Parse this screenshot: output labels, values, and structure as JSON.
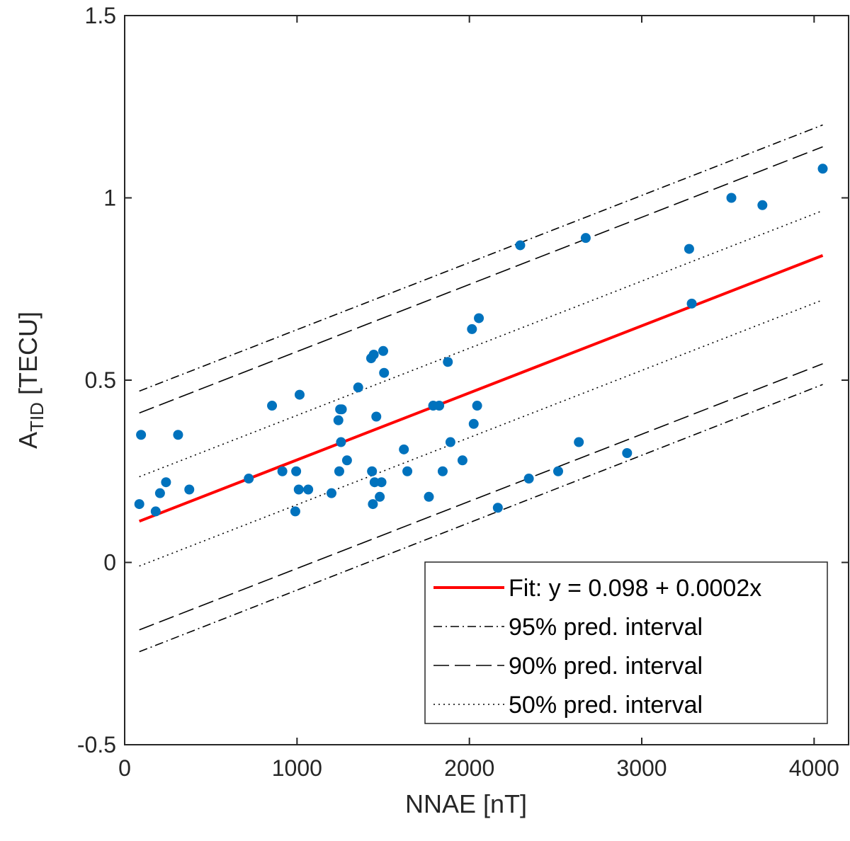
{
  "chart_data": {
    "type": "scatter",
    "xlabel": "NNAE [nT]",
    "ylabel_main": "A",
    "ylabel_sub": "TID",
    "ylabel_unit": " [TECU]",
    "xlim": [
      0,
      4200
    ],
    "ylim": [
      -0.5,
      1.5
    ],
    "xticks": [
      0,
      1000,
      2000,
      3000,
      4000
    ],
    "xtick_labels": [
      "0",
      "1000",
      "2000",
      "3000",
      "4000"
    ],
    "yticks": [
      -0.5,
      0,
      0.5,
      1,
      1.5
    ],
    "ytick_labels": [
      "-0.5",
      "0",
      "0.5",
      "1",
      "1.5"
    ],
    "grid": false,
    "legend_position": "bottom-right",
    "series": [
      {
        "name": "data",
        "kind": "points",
        "color": "#0072BD",
        "x": [
          85,
          95,
          180,
          205,
          240,
          310,
          375,
          720,
          855,
          915,
          990,
          995,
          1010,
          1015,
          1065,
          1200,
          1240,
          1245,
          1250,
          1255,
          1260,
          1290,
          1355,
          1430,
          1435,
          1440,
          1445,
          1450,
          1460,
          1480,
          1490,
          1500,
          1505,
          1620,
          1640,
          1765,
          1790,
          1825,
          1845,
          1875,
          1890,
          1960,
          2015,
          2025,
          2045,
          2055,
          2165,
          2295,
          2345,
          2515,
          2635,
          2675,
          2915,
          3275,
          3290,
          3520,
          3700,
          4050
        ],
        "y": [
          0.16,
          0.35,
          0.14,
          0.19,
          0.22,
          0.35,
          0.2,
          0.23,
          0.43,
          0.25,
          0.14,
          0.25,
          0.2,
          0.46,
          0.2,
          0.19,
          0.39,
          0.25,
          0.42,
          0.33,
          0.42,
          0.28,
          0.48,
          0.56,
          0.25,
          0.16,
          0.57,
          0.22,
          0.4,
          0.18,
          0.22,
          0.58,
          0.52,
          0.31,
          0.25,
          0.18,
          0.43,
          0.43,
          0.25,
          0.55,
          0.33,
          0.28,
          0.64,
          0.38,
          0.43,
          0.67,
          0.15,
          0.87,
          0.23,
          0.25,
          0.33,
          0.89,
          0.3,
          0.86,
          0.71,
          1.0,
          0.98,
          1.08
        ]
      },
      {
        "name": "Fit: y = 0.098 + 0.0002x",
        "kind": "line",
        "style": "solid",
        "color": "#FF0000",
        "x": [
          85,
          4050
        ],
        "y": [
          0.113,
          0.842
        ]
      },
      {
        "name": "95% pred. interval",
        "kind": "line",
        "style": "dashdot",
        "color": "#000000",
        "x": [
          85,
          4050
        ],
        "y": [
          0.47,
          1.2
        ]
      },
      {
        "name": "95% pred. interval (lower)",
        "kind": "line",
        "style": "dashdot",
        "color": "#000000",
        "x": [
          85,
          4050
        ],
        "y": [
          -0.245,
          0.488
        ]
      },
      {
        "name": "90% pred. interval",
        "kind": "line",
        "style": "dashed",
        "color": "#000000",
        "x": [
          85,
          4050
        ],
        "y": [
          0.41,
          1.14
        ]
      },
      {
        "name": "90% pred. interval (lower)",
        "kind": "line",
        "style": "dashed",
        "color": "#000000",
        "x": [
          85,
          4050
        ],
        "y": [
          -0.185,
          0.545
        ]
      },
      {
        "name": "50% pred. interval",
        "kind": "line",
        "style": "dotted",
        "color": "#000000",
        "x": [
          85,
          4050
        ],
        "y": [
          0.235,
          0.965
        ]
      },
      {
        "name": "50% pred. interval (lower)",
        "kind": "line",
        "style": "dotted",
        "color": "#000000",
        "x": [
          85,
          4050
        ],
        "y": [
          -0.01,
          0.72
        ]
      }
    ],
    "legend": [
      {
        "label": "Fit: y = 0.098 + 0.0002x",
        "style": "solid",
        "color": "#FF0000"
      },
      {
        "label": "95% pred. interval",
        "style": "dashdot",
        "color": "#000000"
      },
      {
        "label": "90% pred. interval",
        "style": "dashed",
        "color": "#000000"
      },
      {
        "label": "50% pred. interval",
        "style": "dotted",
        "color": "#000000"
      }
    ]
  }
}
